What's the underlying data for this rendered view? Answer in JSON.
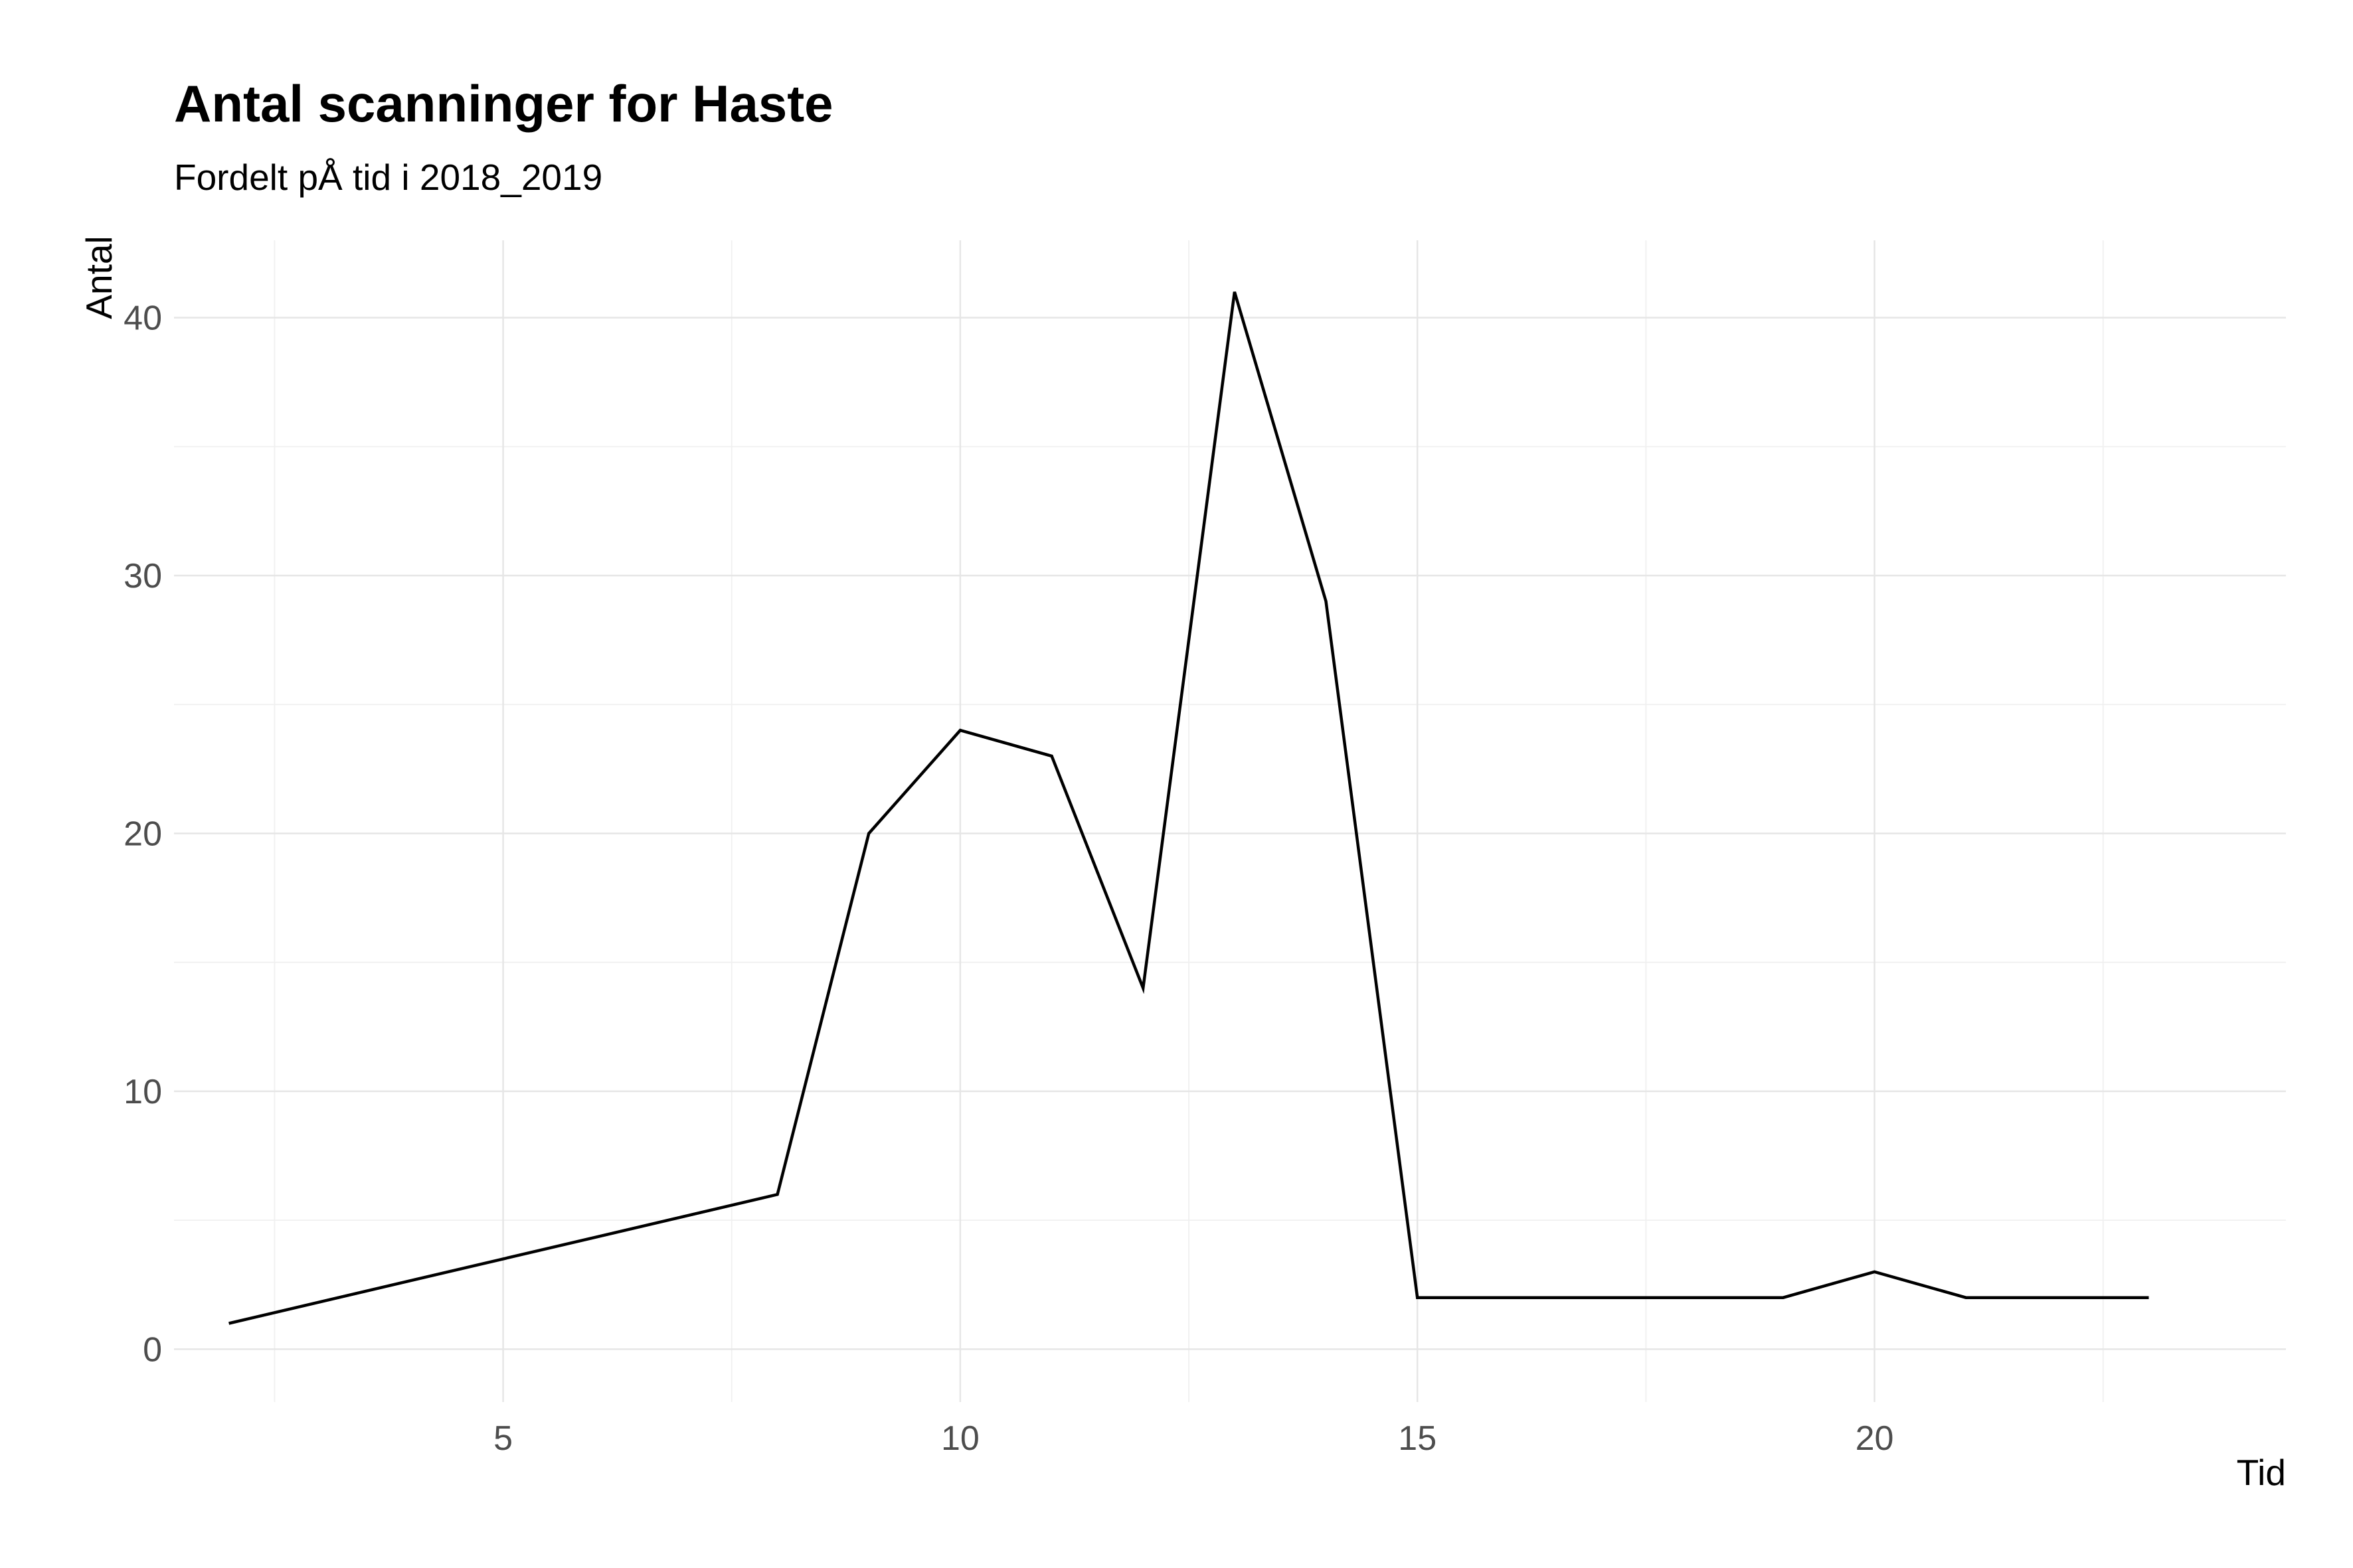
{
  "chart_data": {
    "type": "line",
    "title": "Antal scanninger for Haste",
    "subtitle": "Fordelt pÅ tid i 2018_2019",
    "xlabel": "Tid",
    "ylabel": "Antal",
    "xlim": [
      1.4,
      24.5
    ],
    "ylim": [
      -2.05,
      43
    ],
    "x_ticks": [
      5,
      10,
      15,
      20
    ],
    "y_ticks": [
      0,
      10,
      20,
      30,
      40
    ],
    "x_tick_labels": [
      "5",
      "10",
      "15",
      "20"
    ],
    "y_tick_labels": [
      "0",
      "10",
      "20",
      "30",
      "40"
    ],
    "grid": true,
    "legend": "none",
    "series": [
      {
        "color": "#000000",
        "x": [
          2,
          8,
          9,
          10,
          11,
          12,
          13,
          14,
          15,
          16,
          17,
          18,
          19,
          20,
          21,
          22,
          23
        ],
        "y": [
          1,
          6,
          20,
          24,
          23,
          14,
          41,
          29,
          2,
          2,
          2,
          2,
          2,
          3,
          2,
          2,
          2
        ]
      }
    ]
  }
}
